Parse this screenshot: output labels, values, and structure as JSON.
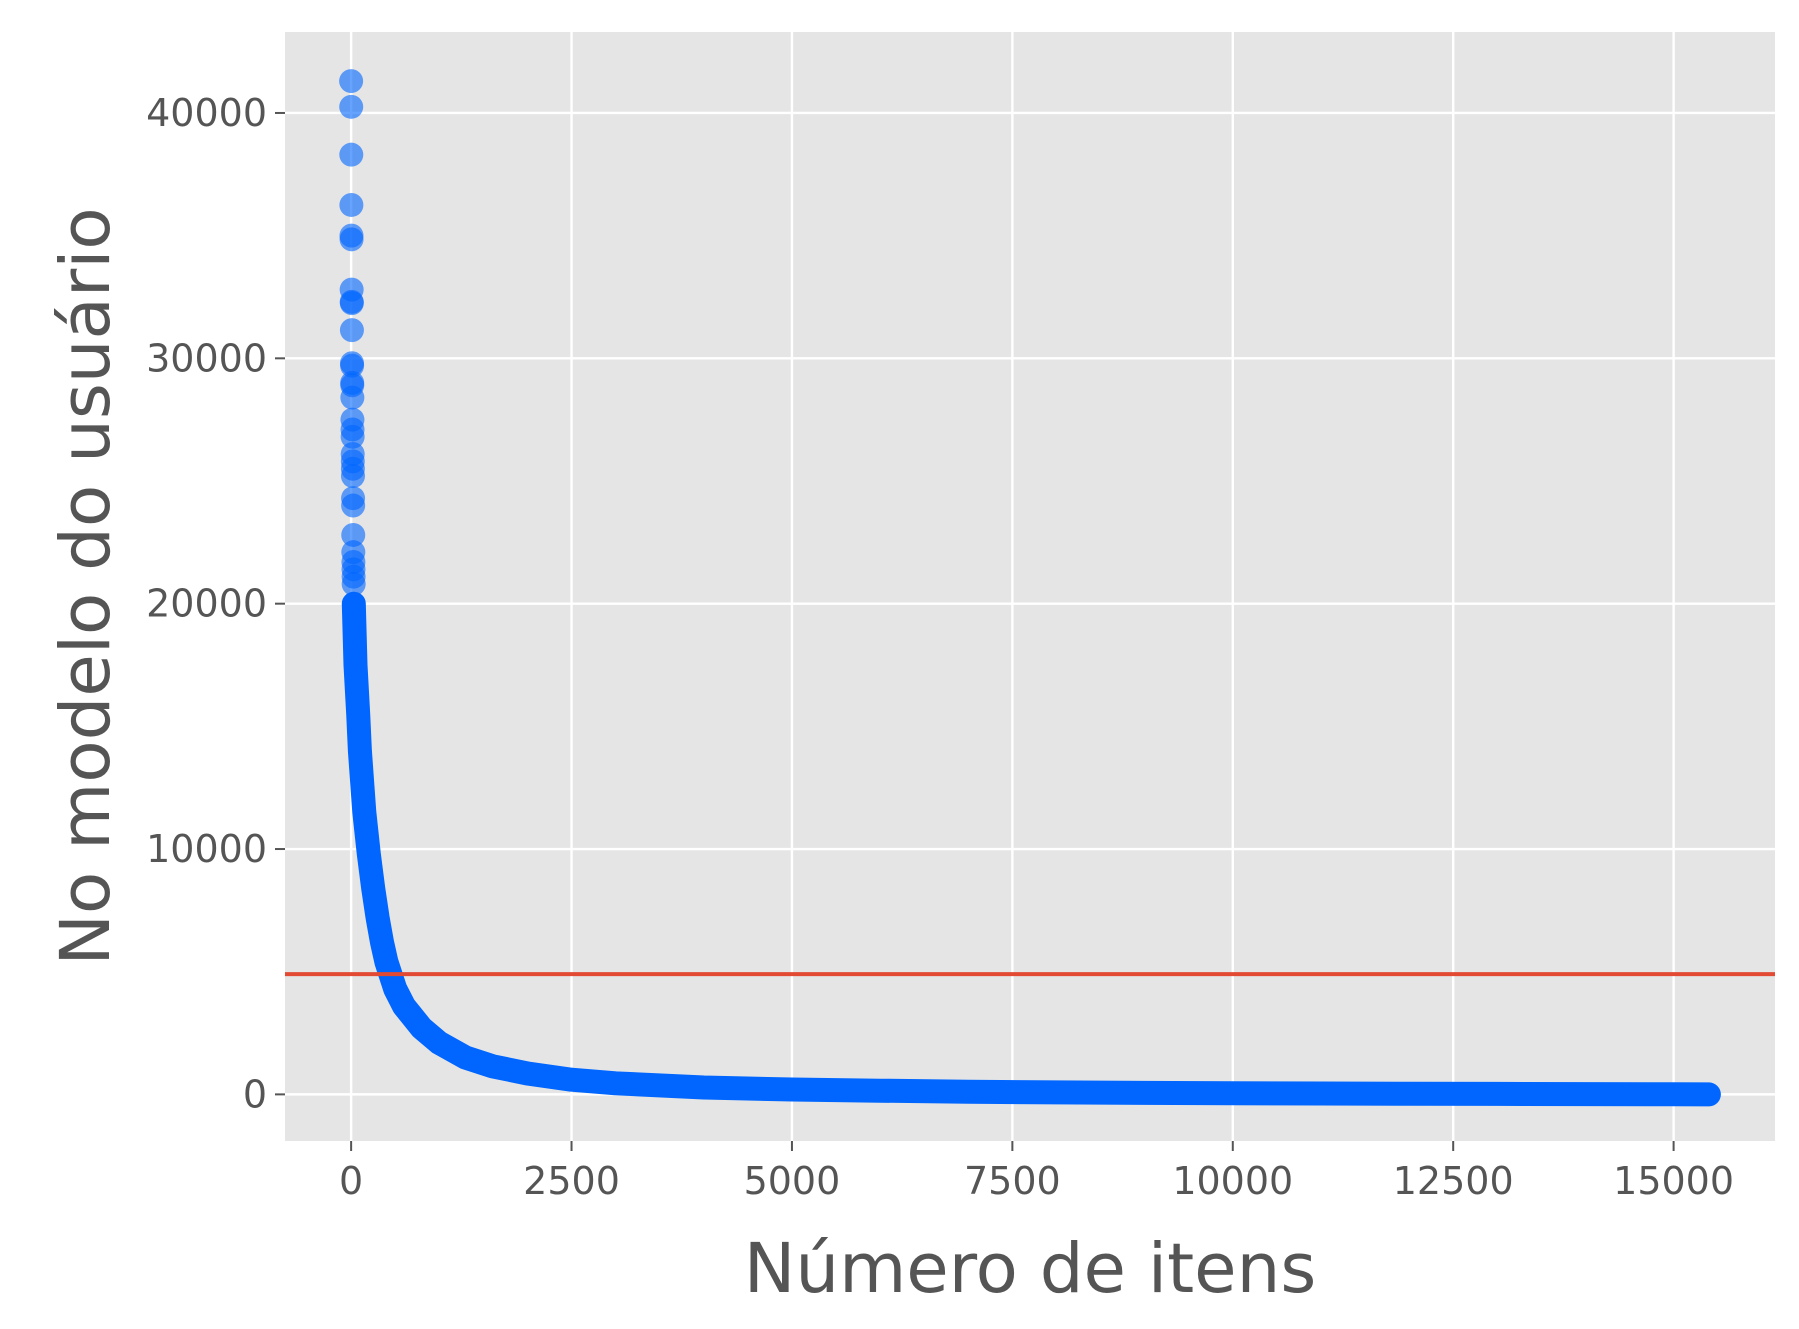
{
  "chart_data": {
    "type": "scatter",
    "title": "",
    "xlabel": "Número de itens",
    "ylabel": "No modelo do usuário",
    "xlim": [
      -750,
      16150
    ],
    "ylim": [
      -1900,
      43300
    ],
    "x_ticks": [
      0,
      2500,
      5000,
      7500,
      10000,
      12500,
      15000
    ],
    "x_tick_labels": [
      "0",
      "2500",
      "5000",
      "7500",
      "10000",
      "12500",
      "15000"
    ],
    "y_ticks": [
      0,
      10000,
      20000,
      30000,
      40000
    ],
    "y_tick_labels": [
      "0",
      "10000",
      "20000",
      "30000",
      "40000"
    ],
    "grid": true,
    "legend": "none",
    "background_color": "#e5e5e5",
    "grid_color": "#ffffff",
    "point_color": "#0066ff",
    "point_opacity": 0.6,
    "line_color": "#e24a33",
    "horizontal_line": {
      "y": 4900
    },
    "outlier_points": {
      "x": [
        0,
        1,
        2,
        3,
        4,
        5,
        6,
        7,
        8,
        9,
        10,
        11,
        12,
        13,
        14,
        15,
        16,
        17,
        18,
        19,
        20,
        21,
        22,
        23,
        24,
        25,
        26,
        27,
        28,
        29
      ],
      "y": [
        41300,
        40250,
        38300,
        36250,
        35000,
        34850,
        32800,
        32300,
        32250,
        31150,
        29800,
        29700,
        29000,
        28900,
        28400,
        27500,
        27100,
        26800,
        26100,
        25800,
        25500,
        25200,
        24300,
        24000,
        22800,
        22100,
        21700,
        21400,
        21100,
        20800
      ]
    },
    "curve_points": {
      "x": [
        30,
        50,
        80,
        100,
        150,
        200,
        250,
        300,
        350,
        400,
        500,
        600,
        800,
        1000,
        1300,
        1600,
        2000,
        2500,
        3000,
        4000,
        5000,
        6000,
        7000,
        8000,
        9000,
        10000,
        11000,
        12000,
        13000,
        14000,
        15000,
        15400
      ],
      "y": [
        20000,
        17500,
        15500,
        14000,
        11500,
        9800,
        8400,
        7200,
        6200,
        5400,
        4300,
        3600,
        2700,
        2100,
        1500,
        1150,
        850,
        600,
        450,
        280,
        200,
        150,
        110,
        80,
        60,
        45,
        35,
        25,
        18,
        10,
        5,
        0
      ]
    }
  }
}
